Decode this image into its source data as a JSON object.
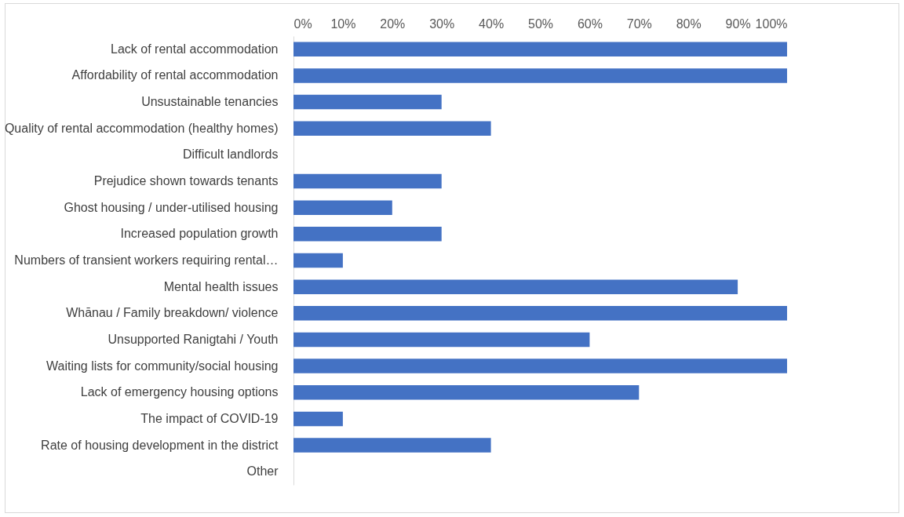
{
  "chart_data": {
    "type": "bar",
    "orientation": "horizontal",
    "categories": [
      "Lack of rental accommodation",
      "Affordability of rental accommodation",
      "Unsustainable tenancies",
      "Quality of rental accommodation (healthy homes)",
      "Difficult landlords",
      "Prejudice shown towards tenants",
      "Ghost housing / under-utilised housing",
      "Increased population growth",
      "Numbers of transient workers requiring rental…",
      "Mental health issues",
      "Whānau / Family breakdown/ violence",
      "Unsupported Ranigtahi / Youth",
      "Waiting lists for community/social housing",
      "Lack of emergency housing options",
      "The impact of COVID-19",
      "Rate of housing development in the district",
      "Other"
    ],
    "values": [
      100,
      100,
      30,
      40,
      0,
      30,
      20,
      30,
      10,
      90,
      100,
      60,
      100,
      70,
      10,
      40,
      0
    ],
    "color": "#4472c4",
    "xlim": [
      0,
      100
    ],
    "xticks": [
      {
        "value": 0,
        "label": "0%"
      },
      {
        "value": 10,
        "label": "10%"
      },
      {
        "value": 20,
        "label": "20%"
      },
      {
        "value": 30,
        "label": "30%"
      },
      {
        "value": 40,
        "label": "40%"
      },
      {
        "value": 50,
        "label": "50%"
      },
      {
        "value": 60,
        "label": "60%"
      },
      {
        "value": 70,
        "label": "70%"
      },
      {
        "value": 80,
        "label": "80%"
      },
      {
        "value": 90,
        "label": "90%"
      },
      {
        "value": 100,
        "label": "100%"
      }
    ],
    "grid": false
  }
}
